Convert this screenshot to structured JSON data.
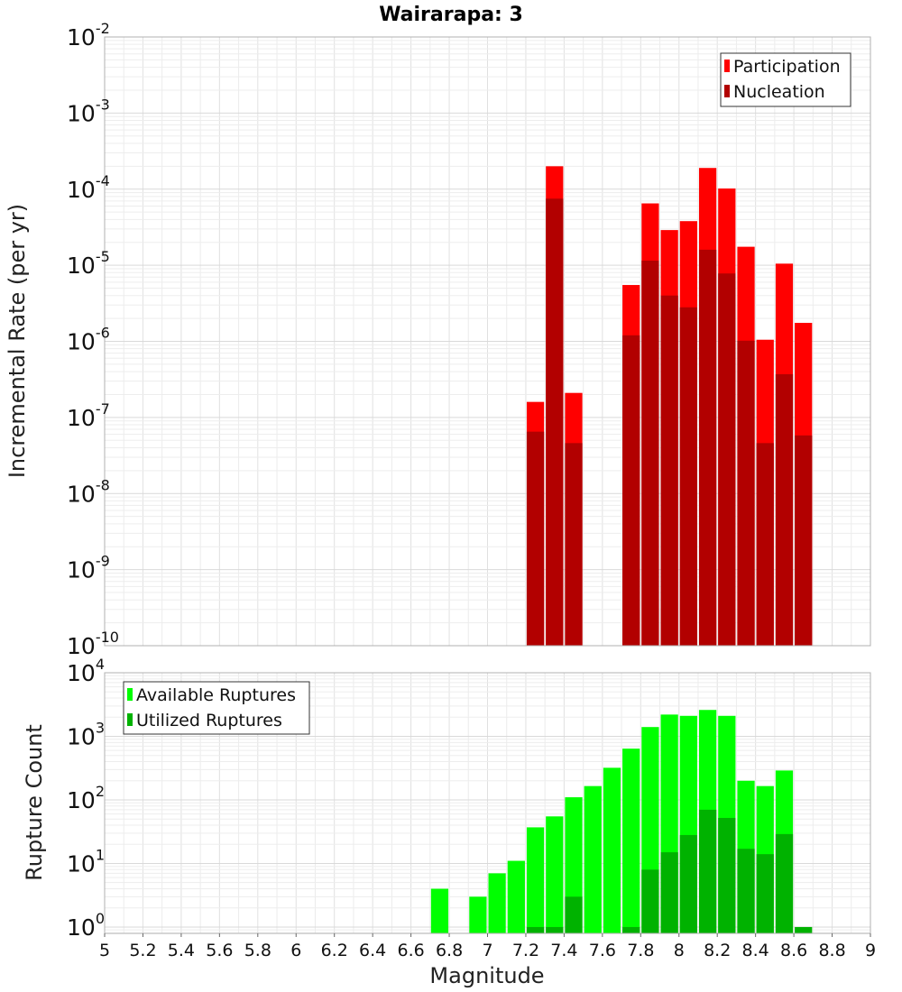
{
  "chart_data": [
    {
      "type": "bar",
      "title": "Wairarapa: 3",
      "ylabel": "Incremental Rate (per yr)",
      "xlabel": "",
      "y_scale": "log",
      "ylim_exp": [
        -10,
        -2
      ],
      "ytick_labels": [
        {
          "base": "10",
          "exp": "-10"
        },
        {
          "base": "10",
          "exp": "-9"
        },
        {
          "base": "10",
          "exp": "-8"
        },
        {
          "base": "10",
          "exp": "-7"
        },
        {
          "base": "10",
          "exp": "-6"
        },
        {
          "base": "10",
          "exp": "-5"
        },
        {
          "base": "10",
          "exp": "-4"
        },
        {
          "base": "10",
          "exp": "-3"
        },
        {
          "base": "10",
          "exp": "-2"
        }
      ],
      "xlim": [
        5,
        9
      ],
      "grid": true,
      "legend": "top-right",
      "series": [
        {
          "name": "Participation",
          "color": "#ff0000",
          "x": [
            7.25,
            7.35,
            7.45,
            7.75,
            7.85,
            7.95,
            8.05,
            8.15,
            8.25,
            8.35,
            8.45,
            8.55,
            8.65
          ],
          "values": [
            1.6e-07,
            0.0002,
            2.1e-07,
            5.5e-06,
            6.5e-05,
            2.9e-05,
            3.8e-05,
            0.00019,
            0.000102,
            1.75e-05,
            1.05e-06,
            1.05e-05,
            1.75e-06
          ]
        },
        {
          "name": "Nucleation",
          "color": "#b20000",
          "x": [
            7.25,
            7.35,
            7.45,
            7.75,
            7.85,
            7.95,
            8.05,
            8.15,
            8.25,
            8.35,
            8.45,
            8.55,
            8.65
          ],
          "values": [
            6.5e-08,
            7.5e-05,
            4.6e-08,
            1.2e-06,
            1.15e-05,
            4e-06,
            2.8e-06,
            1.6e-05,
            7.8e-06,
            1.02e-06,
            4.6e-08,
            3.7e-07,
            5.8e-08
          ]
        }
      ]
    },
    {
      "type": "bar",
      "title": "",
      "xlabel": "Magnitude",
      "ylabel": "Rupture Count",
      "y_scale": "log",
      "ylim_exp": [
        -0.1,
        4
      ],
      "ytick_labels": [
        {
          "base": "10",
          "exp": "0"
        },
        {
          "base": "10",
          "exp": "1"
        },
        {
          "base": "10",
          "exp": "2"
        },
        {
          "base": "10",
          "exp": "3"
        },
        {
          "base": "10",
          "exp": "4"
        }
      ],
      "xlim": [
        5,
        9
      ],
      "xtick_labels": [
        "5",
        "5.2",
        "5.4",
        "5.6",
        "5.8",
        "6",
        "6.2",
        "6.4",
        "6.6",
        "6.8",
        "7",
        "7.2",
        "7.4",
        "7.6",
        "7.8",
        "8",
        "8.2",
        "8.4",
        "8.6",
        "8.8",
        "9"
      ],
      "grid": true,
      "legend": "top-left",
      "series": [
        {
          "name": "Available Ruptures",
          "color": "#00ff00",
          "x": [
            6.75,
            6.95,
            7.05,
            7.15,
            7.25,
            7.35,
            7.45,
            7.55,
            7.65,
            7.75,
            7.85,
            7.95,
            8.05,
            8.15,
            8.25,
            8.35,
            8.45,
            8.55
          ],
          "values": [
            4,
            3,
            7,
            11,
            37,
            55,
            110,
            165,
            320,
            640,
            1400,
            2200,
            2100,
            2600,
            2100,
            200,
            165,
            290
          ]
        },
        {
          "name": "Utilized Ruptures",
          "color": "#00b200",
          "x": [
            7.25,
            7.35,
            7.45,
            7.75,
            7.85,
            7.95,
            8.05,
            8.15,
            8.25,
            8.35,
            8.45,
            8.55,
            8.65
          ],
          "values": [
            1,
            1,
            3,
            1,
            8,
            15,
            28,
            70,
            52,
            17,
            14,
            29,
            1
          ]
        }
      ]
    }
  ]
}
